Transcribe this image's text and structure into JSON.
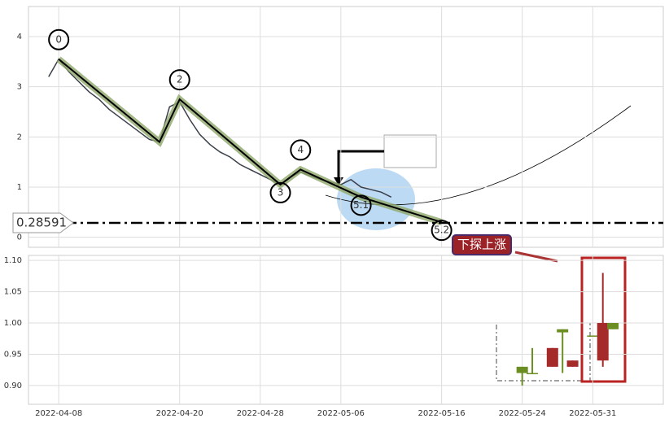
{
  "chart_data": [
    {
      "type": "line",
      "xlim": [
        "2022-04-05",
        "2022-06-07"
      ],
      "ylim": [
        -0.2,
        4.6
      ],
      "yticks": [
        0,
        1,
        2,
        3,
        4
      ],
      "grid": true,
      "series": [
        {
          "name": "price",
          "color": "#3a3f4a",
          "x": [
            "2022-04-07",
            "2022-04-08",
            "2022-04-09",
            "2022-04-10",
            "2022-04-11",
            "2022-04-12",
            "2022-04-13",
            "2022-04-14",
            "2022-04-15",
            "2022-04-16",
            "2022-04-17",
            "2022-04-18",
            "2022-04-19",
            "2022-04-20",
            "2022-04-21",
            "2022-04-22",
            "2022-04-23",
            "2022-04-24",
            "2022-04-25",
            "2022-04-26",
            "2022-04-27",
            "2022-04-28",
            "2022-04-29",
            "2022-04-30",
            "2022-05-01",
            "2022-05-02",
            "2022-05-03",
            "2022-05-04",
            "2022-05-05",
            "2022-05-06",
            "2022-05-07",
            "2022-05-08",
            "2022-05-09",
            "2022-05-10",
            "2022-05-11"
          ],
          "values": [
            3.2,
            3.55,
            3.3,
            3.1,
            2.9,
            2.75,
            2.55,
            2.4,
            2.25,
            2.1,
            1.95,
            1.9,
            2.6,
            2.7,
            2.35,
            2.05,
            1.85,
            1.7,
            1.6,
            1.45,
            1.35,
            1.25,
            1.15,
            1.05,
            1.2,
            1.3,
            1.22,
            1.15,
            1.1,
            1.05,
            1.15,
            1.0,
            0.95,
            0.9,
            0.8
          ]
        },
        {
          "name": "wave",
          "color": "#8fa86a",
          "x": [
            "2022-04-08",
            "2022-04-18",
            "2022-04-20",
            "2022-04-30",
            "2022-05-02",
            "2022-05-08",
            "2022-05-16"
          ],
          "values": [
            3.55,
            1.9,
            2.75,
            1.05,
            1.35,
            0.8,
            0.3
          ],
          "point_labels": [
            "0",
            null,
            "2",
            "3",
            "4",
            "5.1",
            "5.2"
          ]
        }
      ],
      "hline": {
        "value": 0.28591,
        "label": "0.28591"
      }
    },
    {
      "type": "candlestick",
      "xlim": [
        "2022-04-05",
        "2022-06-07"
      ],
      "ylim": [
        0.87,
        1.108
      ],
      "xticks": [
        "2022-04-08",
        "2022-04-20",
        "2022-04-28",
        "2022-05-06",
        "2022-05-16",
        "2022-05-24",
        "2022-05-31"
      ],
      "yticks": [
        {
          "value": 0.9,
          "label": "0.90"
        },
        0.95,
        {
          "value": 1.0,
          "label": "1.00"
        },
        1.05,
        {
          "value": 1.1,
          "label": "1.10"
        }
      ],
      "grid": true,
      "up_color": "#a52a2a",
      "down_color": "#6b8e23",
      "x": [
        "2022-05-24",
        "2022-05-25",
        "2022-05-27",
        "2022-05-28",
        "2022-05-29",
        "2022-05-31",
        "2022-06-01",
        "2022-06-02"
      ],
      "open": [
        0.93,
        0.92,
        0.93,
        0.99,
        0.93,
        0.98,
        0.94,
        1.0
      ],
      "high": [
        0.93,
        0.96,
        0.96,
        0.99,
        0.94,
        0.98,
        1.08,
        1.0
      ],
      "low": [
        0.9,
        0.92,
        0.93,
        0.92,
        0.93,
        0.98,
        0.93,
        0.99
      ],
      "close": [
        0.92,
        0.92,
        0.96,
        0.985,
        0.94,
        0.98,
        1.0,
        0.99
      ],
      "annotation": "下探上涨"
    }
  ]
}
